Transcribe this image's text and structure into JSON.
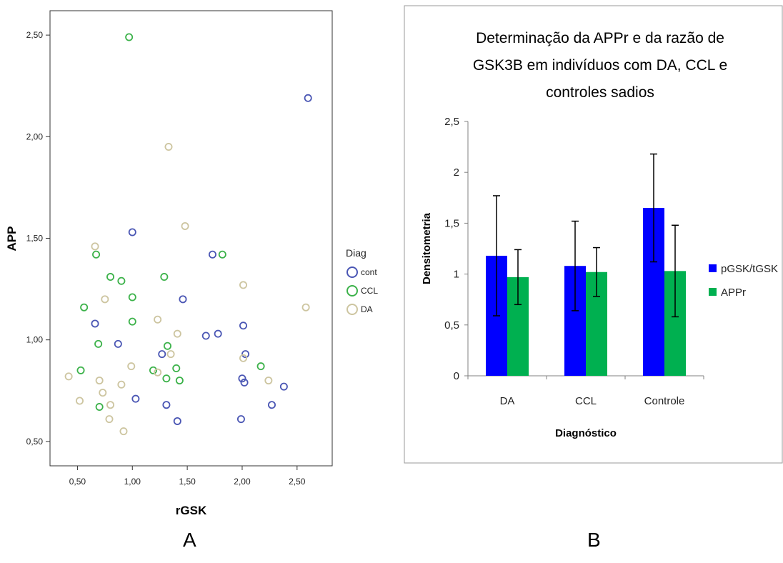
{
  "panels": {
    "a_letter": "A",
    "b_letter": "B"
  },
  "chart_data": [
    {
      "type": "scatter",
      "xlabel": "rGSK",
      "ylabel": "APP",
      "xlim": [
        0.25,
        2.82
      ],
      "ylim": [
        0.38,
        2.62
      ],
      "xticks": [
        0.5,
        1.0,
        1.5,
        2.0,
        2.5
      ],
      "xtick_labels": [
        "0,50",
        "1,00",
        "1,50",
        "2,00",
        "2,50"
      ],
      "yticks": [
        0.5,
        1.0,
        1.5,
        2.0,
        2.5
      ],
      "ytick_labels": [
        "0,50",
        "1,00",
        "1,50",
        "2,00",
        "2,50"
      ],
      "grid": false,
      "legend": {
        "title": "Diag",
        "position": "right"
      },
      "series": [
        {
          "name": "cont",
          "color": "#4a56b4",
          "points": [
            [
              0.66,
              1.08
            ],
            [
              0.87,
              0.98
            ],
            [
              1.0,
              1.53
            ],
            [
              1.03,
              0.71
            ],
            [
              1.27,
              0.93
            ],
            [
              1.31,
              0.68
            ],
            [
              1.41,
              0.6
            ],
            [
              1.46,
              1.2
            ],
            [
              1.67,
              1.02
            ],
            [
              1.73,
              1.42
            ],
            [
              1.78,
              1.03
            ],
            [
              1.99,
              0.61
            ],
            [
              2.0,
              0.81
            ],
            [
              2.01,
              1.07
            ],
            [
              2.02,
              0.79
            ],
            [
              2.03,
              0.93
            ],
            [
              2.27,
              0.68
            ],
            [
              2.38,
              0.77
            ],
            [
              2.6,
              2.19
            ]
          ]
        },
        {
          "name": "CCL",
          "color": "#3cb24a",
          "points": [
            [
              0.53,
              0.85
            ],
            [
              0.56,
              1.16
            ],
            [
              0.67,
              1.42
            ],
            [
              0.69,
              0.98
            ],
            [
              0.7,
              0.67
            ],
            [
              0.8,
              1.31
            ],
            [
              0.9,
              1.29
            ],
            [
              0.97,
              2.49
            ],
            [
              1.0,
              1.21
            ],
            [
              1.0,
              1.09
            ],
            [
              1.19,
              0.85
            ],
            [
              1.29,
              1.31
            ],
            [
              1.31,
              0.81
            ],
            [
              1.32,
              0.97
            ],
            [
              1.4,
              0.86
            ],
            [
              1.43,
              0.8
            ],
            [
              1.82,
              1.42
            ],
            [
              2.17,
              0.87
            ]
          ]
        },
        {
          "name": "DA",
          "color": "#cdc5a0",
          "points": [
            [
              0.42,
              0.82
            ],
            [
              0.52,
              0.7
            ],
            [
              0.66,
              1.46
            ],
            [
              0.7,
              0.8
            ],
            [
              0.73,
              0.74
            ],
            [
              0.75,
              1.2
            ],
            [
              0.79,
              0.61
            ],
            [
              0.8,
              0.68
            ],
            [
              0.9,
              0.78
            ],
            [
              0.92,
              0.55
            ],
            [
              0.99,
              0.87
            ],
            [
              1.23,
              0.84
            ],
            [
              1.23,
              1.1
            ],
            [
              1.33,
              1.95
            ],
            [
              1.35,
              0.93
            ],
            [
              1.41,
              1.03
            ],
            [
              1.48,
              1.56
            ],
            [
              2.01,
              1.27
            ],
            [
              2.01,
              0.91
            ],
            [
              2.24,
              0.8
            ],
            [
              2.58,
              1.16
            ]
          ]
        }
      ]
    },
    {
      "type": "bar",
      "title_lines": [
        "Determinação da APPr e da razão de",
        "GSK3B em indivíduos com DA, CCL e",
        "controles sadios"
      ],
      "xlabel": "Diagnóstico",
      "ylabel": "Densitometria",
      "categories": [
        "DA",
        "CCL",
        "Controle"
      ],
      "ylim": [
        0,
        2.5
      ],
      "yticks": [
        0,
        0.5,
        1,
        1.5,
        2,
        2.5
      ],
      "ytick_labels": [
        "0",
        "0,5",
        "1",
        "1,5",
        "2",
        "2,5"
      ],
      "grid": false,
      "legend": {
        "position": "right"
      },
      "series": [
        {
          "name": "pGSK/tGSK",
          "color": "#0000ff",
          "values": [
            1.18,
            1.08,
            1.65
          ],
          "error": [
            0.59,
            0.44,
            0.53
          ]
        },
        {
          "name": "APPr",
          "color": "#00b050",
          "values": [
            0.97,
            1.02,
            1.03
          ],
          "error": [
            0.27,
            0.24,
            0.45
          ]
        }
      ]
    }
  ]
}
